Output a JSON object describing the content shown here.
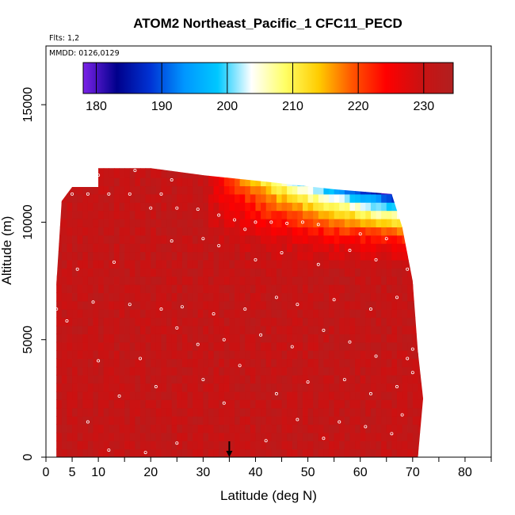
{
  "chart_data": {
    "type": "heatmap",
    "title": "ATOM2 Northeast_Pacific_1 CFC11_PECD",
    "flights_note": "Flts: 1,2",
    "dates_note": "MMDD: 0126,0129",
    "xlabel": "Latitude (deg N)",
    "ylabel": "Altitude (m)",
    "xlim": [
      0,
      85
    ],
    "ylim": [
      0,
      17500
    ],
    "x_ticks": [
      0,
      5,
      10,
      20,
      30,
      40,
      50,
      60,
      70,
      80
    ],
    "x_minor_ticks": [
      15,
      25,
      35,
      45,
      55,
      65,
      75,
      85
    ],
    "y_ticks": [
      0,
      5000,
      10000,
      15000
    ],
    "colorbar": {
      "range": [
        178,
        234.5
      ],
      "ticks": [
        180,
        190,
        200,
        210,
        220,
        230
      ],
      "stops": [
        "#7b22e8",
        "#00008b",
        "#0033d4",
        "#0096ff",
        "#00c8ff",
        "#ffffff",
        "#ffff66",
        "#ffcc00",
        "#ff5500",
        "#ff0000",
        "#cc1111",
        "#b02020"
      ]
    },
    "field_description_values": {
      "background_value": 231,
      "upper_gradient": {
        "lat_start": 30,
        "lat_end": 68,
        "alt_top": 11800,
        "alt_bottom": 7600,
        "min_value": 181
      }
    },
    "altitude_envelope": [
      [
        2,
        900
      ],
      [
        2,
        7400
      ],
      [
        3,
        10900
      ],
      [
        5,
        11500
      ],
      [
        10,
        11500
      ],
      [
        10,
        12300
      ],
      [
        20,
        12300
      ],
      [
        30,
        12000
      ],
      [
        43,
        11700
      ],
      [
        55,
        11400
      ],
      [
        66,
        11200
      ],
      [
        68,
        9800
      ],
      [
        70,
        7500
      ],
      [
        71,
        4500
      ],
      [
        72,
        2500
      ],
      [
        71,
        0
      ],
      [
        2,
        0
      ]
    ],
    "marker": {
      "latitude": 35,
      "label": ""
    },
    "sample_points": [
      [
        5,
        11200
      ],
      [
        8,
        11200
      ],
      [
        12,
        11200
      ],
      [
        16,
        11200
      ],
      [
        22,
        11200
      ],
      [
        10,
        12000
      ],
      [
        17,
        12200
      ],
      [
        24,
        11800
      ],
      [
        20,
        10600
      ],
      [
        25,
        10600
      ],
      [
        29,
        10550
      ],
      [
        33,
        10300
      ],
      [
        36,
        10100
      ],
      [
        40,
        10000
      ],
      [
        43,
        10000
      ],
      [
        46,
        9950
      ],
      [
        49,
        10000
      ],
      [
        52,
        9900
      ],
      [
        38,
        9700
      ],
      [
        30,
        9300
      ],
      [
        33,
        9000
      ],
      [
        24,
        9200
      ],
      [
        60,
        9500
      ],
      [
        65,
        9300
      ],
      [
        58,
        8800
      ],
      [
        63,
        8400
      ],
      [
        69,
        8000
      ],
      [
        45,
        8700
      ],
      [
        52,
        8200
      ],
      [
        40,
        8400
      ],
      [
        13,
        8300
      ],
      [
        6,
        8000
      ],
      [
        2,
        6300
      ],
      [
        4,
        5800
      ],
      [
        9,
        6600
      ],
      [
        16,
        6500
      ],
      [
        22,
        6300
      ],
      [
        26,
        6400
      ],
      [
        32,
        6100
      ],
      [
        38,
        6300
      ],
      [
        44,
        6800
      ],
      [
        48,
        6500
      ],
      [
        55,
        6700
      ],
      [
        62,
        6300
      ],
      [
        67,
        6800
      ],
      [
        70,
        4600
      ],
      [
        34,
        5000
      ],
      [
        29,
        4800
      ],
      [
        25,
        5500
      ],
      [
        41,
        5200
      ],
      [
        47,
        4700
      ],
      [
        53,
        5400
      ],
      [
        58,
        4900
      ],
      [
        63,
        4300
      ],
      [
        69,
        4200
      ],
      [
        70,
        3600
      ],
      [
        10,
        4100
      ],
      [
        18,
        4200
      ],
      [
        21,
        3000
      ],
      [
        14,
        2600
      ],
      [
        30,
        3300
      ],
      [
        37,
        3900
      ],
      [
        44,
        2700
      ],
      [
        50,
        3200
      ],
      [
        57,
        3300
      ],
      [
        62,
        2700
      ],
      [
        67,
        3000
      ],
      [
        8,
        1500
      ],
      [
        34,
        2300
      ],
      [
        48,
        1600
      ],
      [
        56,
        1500
      ],
      [
        61,
        1300
      ],
      [
        66,
        1000
      ],
      [
        25,
        600
      ],
      [
        12,
        300
      ],
      [
        19,
        200
      ],
      [
        42,
        700
      ],
      [
        53,
        800
      ],
      [
        68,
        1800
      ]
    ]
  }
}
